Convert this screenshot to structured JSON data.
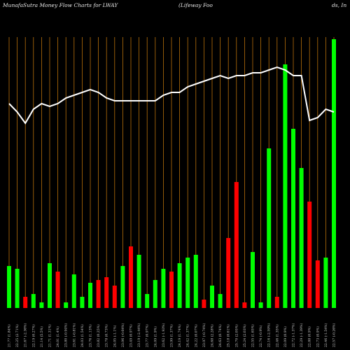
{
  "header": {
    "left": "MunafaSutra  Money Flow  Charts for LWAY",
    "middle": "(Lifeway Foo",
    "right": "ds,  In"
  },
  "chart_data": {
    "type": "bar",
    "title": "MunafaSutra  Money Flow  Charts for LWAY (Lifeway Foods, In",
    "colors": {
      "up": "#00ff00",
      "down": "#ff0000",
      "line": "#ffffff",
      "grid": "#b8700a",
      "background": "#000000"
    },
    "ylim": [
      0,
      100
    ],
    "categories": [
      "21.77 (1.84%)",
      "22.25 (2.71%)",
      "21.67 (-2.36%)",
      "22.19 (0.27%)",
      "21.14 (5.5%)",
      "21.71 (1.31%)",
      "24.01 (1.4%)",
      "23.80 (-0.94%)",
      "23.61 (-0.81%)",
      "24.03 (1.54%)",
      "23.76 (1.13%)",
      "23.82 (0.25%)",
      "23.78 (0.73%)",
      "24.05 (-1.1%)",
      "23.06 (-0.64%)",
      "23.49 (0.97%)",
      "23.19 (-2.44%)",
      "23.77 (0.97%)",
      "24.09 (1.9%)",
      "23.62 (-1.93%)",
      "23.99 (1.37%)",
      "24.19 (1.74%)",
      "24.42 (1.37%)",
      "24.22 (0.07%)",
      "23.97 (-0.74%)",
      "24.68 (2.28%)",
      "24.63 (0.74%)",
      "25.18 (0.61%)",
      "25.70 (2.05%)",
      "25.24 (2.03%)",
      "22.55 (1.65%)",
      "22.74 (-0.9%)",
      "22.16 (-2.59%)",
      "22.46 (1.35%)",
      "22.09 (0.9%)",
      "22.72 (-1.37%)",
      "22.29 (-1.39%)",
      "22.88 (0.9%)",
      "22.73 (0.9%)",
      "22.46 (-1.54%)",
      "22.57 (-0.26%)"
    ],
    "series": [
      {
        "values": [
          15,
          14,
          4,
          5,
          2,
          16,
          13,
          2,
          12,
          4,
          9,
          10,
          11,
          8,
          15,
          22,
          19,
          5,
          10,
          14,
          13,
          16,
          18,
          19,
          3,
          8,
          5,
          25,
          45,
          2,
          20,
          2,
          57,
          4,
          87,
          64,
          50,
          38,
          17,
          18,
          96
        ],
        "colors": [
          "up",
          "up",
          "down",
          "up",
          "up",
          "up",
          "down",
          "up",
          "up",
          "up",
          "up",
          "down",
          "down",
          "down",
          "up",
          "down",
          "up",
          "up",
          "up",
          "up",
          "down",
          "up",
          "up",
          "up",
          "down",
          "up",
          "up",
          "down",
          "down",
          "down",
          "up",
          "up",
          "up",
          "down",
          "up",
          "up",
          "up",
          "down",
          "down",
          "up",
          "up"
        ]
      }
    ],
    "line": [
      73,
      70,
      66,
      71,
      73,
      72,
      73,
      75,
      76,
      77,
      78,
      77,
      75,
      74,
      74,
      74,
      74,
      74,
      74,
      76,
      77,
      77,
      79,
      80,
      81,
      82,
      83,
      82,
      83,
      83,
      84,
      84,
      85,
      86,
      85,
      83,
      83,
      67,
      68,
      71,
      70
    ]
  }
}
